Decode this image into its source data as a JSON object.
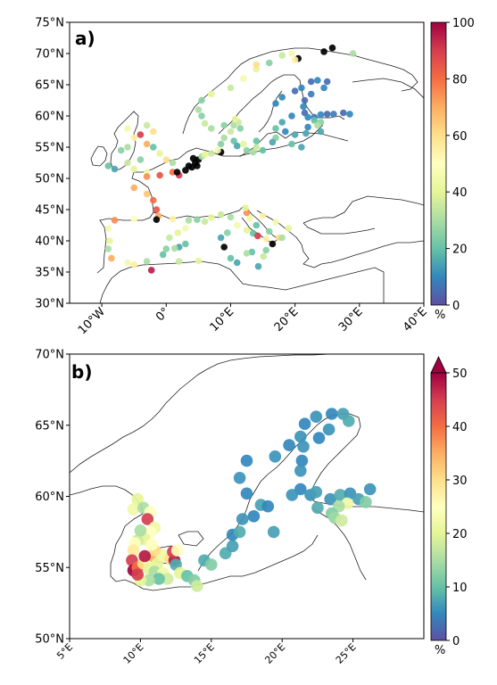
{
  "chart_data": [
    {
      "type": "scatter",
      "panel_label": "a)",
      "title": "",
      "xlabel": "",
      "ylabel": "",
      "xlim": [
        -15,
        40
      ],
      "ylim": [
        30,
        75
      ],
      "x_ticks": [
        "10°W",
        "0°",
        "10°E",
        "20°E",
        "30°E",
        "40°E"
      ],
      "x_tick_values": [
        -10,
        0,
        10,
        20,
        30,
        40
      ],
      "y_ticks": [
        "30°N",
        "35°N",
        "40°N",
        "45°N",
        "50°N",
        "55°N",
        "60°N",
        "65°N",
        "70°N",
        "75°N"
      ],
      "y_tick_values": [
        30,
        35,
        40,
        45,
        50,
        55,
        60,
        65,
        70,
        75
      ],
      "colorbar": {
        "min": 0,
        "max": 100,
        "ticks": [
          "0",
          "20",
          "40",
          "60",
          "80",
          "100"
        ],
        "tick_values": [
          0,
          20,
          40,
          60,
          80,
          100
        ],
        "unit": "%",
        "colormap": "Spectral_r",
        "extend_max": false
      },
      "missing_color": "#000000",
      "points": [
        [
          -9,
          52,
          20
        ],
        [
          -8,
          51.5,
          15
        ],
        [
          -6,
          52.5,
          35
        ],
        [
          -5,
          51.5,
          40
        ],
        [
          -4,
          53,
          25
        ],
        [
          -3,
          51,
          45
        ],
        [
          -6,
          55,
          30
        ],
        [
          -5,
          56.5,
          55
        ],
        [
          -6,
          58,
          45
        ],
        [
          -3,
          58.5,
          35
        ],
        [
          -2,
          57.5,
          60
        ],
        [
          -4,
          57,
          90
        ],
        [
          -3,
          55.5,
          70
        ],
        [
          -1,
          54,
          40
        ],
        [
          0,
          53,
          60
        ],
        [
          1,
          52.5,
          30
        ],
        [
          -2,
          55,
          20
        ],
        [
          -7,
          54.5,
          25
        ],
        [
          -3,
          50.3,
          75
        ],
        [
          -1,
          50.5,
          85
        ],
        [
          1,
          51,
          80
        ],
        [
          2,
          50.5,
          90
        ],
        [
          -5,
          48.5,
          70
        ],
        [
          -3,
          47.5,
          65
        ],
        [
          -2,
          46.5,
          80
        ],
        [
          -1.5,
          45,
          85
        ],
        [
          -1.2,
          44,
          70
        ],
        [
          -1.5,
          43.4,
          -1
        ],
        [
          1,
          43.5,
          55
        ],
        [
          -5,
          43.5,
          50
        ],
        [
          -8,
          43.3,
          75
        ],
        [
          -9,
          42,
          45
        ],
        [
          -8.8,
          40,
          40
        ],
        [
          -9,
          38.7,
          30
        ],
        [
          -8.5,
          37.2,
          70
        ],
        [
          -6,
          36.5,
          45
        ],
        [
          -5,
          36.2,
          55
        ],
        [
          -3,
          36.7,
          30
        ],
        [
          -0.5,
          37.8,
          20
        ],
        [
          0,
          38.7,
          25
        ],
        [
          0.5,
          40.5,
          35
        ],
        [
          1.8,
          41.3,
          40
        ],
        [
          3,
          42,
          45
        ],
        [
          3.5,
          43.3,
          30
        ],
        [
          4.8,
          43.4,
          25
        ],
        [
          6,
          43.1,
          35
        ],
        [
          7,
          43.7,
          40
        ],
        [
          8.5,
          44.2,
          35
        ],
        [
          10,
          43.8,
          30
        ],
        [
          11,
          42.5,
          45
        ],
        [
          12.5,
          41.7,
          40
        ],
        [
          13.5,
          41.2,
          20
        ],
        [
          14.2,
          40.8,
          90
        ],
        [
          15.5,
          40.3,
          55
        ],
        [
          16.5,
          39.5,
          -1
        ],
        [
          17.5,
          40.5,
          60
        ],
        [
          18,
          40.5,
          30
        ],
        [
          16,
          41.5,
          25
        ],
        [
          14,
          42.5,
          20
        ],
        [
          13,
          43.6,
          45
        ],
        [
          12.5,
          44.5,
          75
        ],
        [
          12.3,
          45.3,
          40
        ],
        [
          15,
          44,
          55
        ],
        [
          17,
          43,
          45
        ],
        [
          19,
          42,
          40
        ],
        [
          9,
          39,
          -1
        ],
        [
          8.5,
          40.5,
          15
        ],
        [
          9.5,
          41.3,
          25
        ],
        [
          3,
          39.5,
          20
        ],
        [
          2,
          39,
          15
        ],
        [
          1.3,
          38.8,
          30
        ],
        [
          -2.3,
          35.3,
          95
        ],
        [
          2,
          36.7,
          35
        ],
        [
          5,
          36.8,
          40
        ],
        [
          10,
          37.2,
          20
        ],
        [
          11,
          36.5,
          15
        ],
        [
          15.1,
          37.5,
          35
        ],
        [
          13.3,
          38.2,
          20
        ],
        [
          12.5,
          38,
          30
        ],
        [
          14.3,
          35.9,
          15
        ],
        [
          15.5,
          38.5,
          25
        ],
        [
          3,
          51.3,
          -1
        ],
        [
          4,
          51.8,
          -1
        ],
        [
          4.5,
          52.5,
          -1
        ],
        [
          5,
          53,
          -1
        ],
        [
          4.8,
          52,
          -1
        ],
        [
          4.2,
          53.2,
          -1
        ],
        [
          3.5,
          52,
          -1
        ],
        [
          8.5,
          54.2,
          -1
        ],
        [
          1.7,
          51,
          -1
        ],
        [
          5.5,
          53.5,
          30
        ],
        [
          6,
          53.8,
          40
        ],
        [
          7,
          54,
          35
        ],
        [
          8,
          54.5,
          45
        ],
        [
          8.5,
          55.5,
          25
        ],
        [
          9,
          56.5,
          30
        ],
        [
          10,
          57.5,
          35
        ],
        [
          10.5,
          56,
          20
        ],
        [
          11,
          55.2,
          15
        ],
        [
          12,
          55.5,
          40
        ],
        [
          12.5,
          54.5,
          25
        ],
        [
          13.5,
          54.2,
          30
        ],
        [
          14,
          55,
          35
        ],
        [
          15,
          54.5,
          20
        ],
        [
          10.5,
          58.5,
          30
        ],
        [
          11.5,
          58,
          25
        ],
        [
          11.2,
          59,
          35
        ],
        [
          10.7,
          59.5,
          40
        ],
        [
          9,
          58.5,
          25
        ],
        [
          7,
          58,
          30
        ],
        [
          6,
          58.8,
          35
        ],
        [
          5.5,
          60,
          25
        ],
        [
          5,
          61,
          30
        ],
        [
          5.5,
          62.5,
          25
        ],
        [
          7,
          63.5,
          40
        ],
        [
          10,
          64.5,
          35
        ],
        [
          12,
          66,
          45
        ],
        [
          14,
          67.5,
          40
        ],
        [
          16,
          68.5,
          25
        ],
        [
          18,
          69.7,
          35
        ],
        [
          19.5,
          70,
          45
        ],
        [
          20.5,
          69.2,
          -1
        ],
        [
          24.5,
          70.3,
          -1
        ],
        [
          25.8,
          70.9,
          -1
        ],
        [
          29,
          70,
          30
        ],
        [
          20,
          69,
          55
        ],
        [
          14,
          68.2,
          60
        ],
        [
          18,
          59,
          15
        ],
        [
          17,
          58,
          20
        ],
        [
          18.5,
          57.5,
          10
        ],
        [
          17,
          56.5,
          25
        ],
        [
          16.5,
          55.8,
          15
        ],
        [
          14,
          56,
          20
        ],
        [
          21,
          55,
          15
        ],
        [
          19.5,
          55.5,
          20
        ],
        [
          20,
          57,
          15
        ],
        [
          17,
          62,
          10
        ],
        [
          18,
          63,
          10
        ],
        [
          20,
          64,
          5
        ],
        [
          21,
          64.5,
          10
        ],
        [
          22.5,
          65.5,
          5
        ],
        [
          23.5,
          65.7,
          10
        ],
        [
          25,
          65.5,
          5
        ],
        [
          24.5,
          64.5,
          10
        ],
        [
          22.5,
          63.5,
          8
        ],
        [
          21.5,
          62.5,
          5
        ],
        [
          21.3,
          61.5,
          10
        ],
        [
          21.5,
          60.5,
          5
        ],
        [
          22,
          59.8,
          10
        ],
        [
          23,
          59.8,
          8
        ],
        [
          24,
          60.2,
          10
        ],
        [
          25,
          60.3,
          5
        ],
        [
          26,
          60.3,
          8
        ],
        [
          27.5,
          60.5,
          5
        ],
        [
          28.5,
          60.3,
          10
        ],
        [
          23,
          59.3,
          20
        ],
        [
          24,
          59,
          25
        ],
        [
          23.5,
          58.5,
          30
        ],
        [
          22,
          58.2,
          10
        ],
        [
          21.7,
          57.2,
          15
        ],
        [
          24,
          57.5,
          15
        ],
        [
          19.5,
          60,
          10
        ]
      ]
    },
    {
      "type": "scatter",
      "panel_label": "b)",
      "title": "",
      "xlabel": "",
      "ylabel": "",
      "xlim": [
        5,
        30
      ],
      "ylim": [
        50,
        70
      ],
      "x_ticks": [
        "5°E",
        "10°E",
        "15°E",
        "20°E",
        "25°E"
      ],
      "x_tick_values": [
        5,
        10,
        15,
        20,
        25
      ],
      "y_ticks": [
        "50°N",
        "55°N",
        "60°N",
        "65°N",
        "70°N"
      ],
      "y_tick_values": [
        50,
        55,
        60,
        65,
        70
      ],
      "colorbar": {
        "min": 0,
        "max": 50,
        "ticks": [
          "0",
          "10",
          "20",
          "30",
          "40",
          "50"
        ],
        "tick_values": [
          0,
          10,
          20,
          30,
          40,
          50
        ],
        "unit": "%",
        "colormap": "Spectral_r",
        "extend_max": true
      },
      "points": [
        [
          9.8,
          59.8,
          20
        ],
        [
          9.5,
          59.1,
          22
        ],
        [
          10.2,
          59.2,
          15
        ],
        [
          10.7,
          58.9,
          25
        ],
        [
          10.5,
          58.4,
          45
        ],
        [
          11,
          57.8,
          22
        ],
        [
          10.7,
          57.5,
          25
        ],
        [
          10.3,
          57,
          20
        ],
        [
          9.8,
          56.9,
          18
        ],
        [
          10,
          57.6,
          15
        ],
        [
          9.6,
          56.7,
          25
        ],
        [
          9.5,
          56.2,
          28
        ],
        [
          9.4,
          55.5,
          45
        ],
        [
          9.5,
          54.8,
          50
        ],
        [
          9.8,
          55,
          40
        ],
        [
          10.2,
          55.3,
          30
        ],
        [
          10.6,
          55.5,
          25
        ],
        [
          10.9,
          55.8,
          35
        ],
        [
          11.2,
          55.3,
          20
        ],
        [
          11.5,
          55.9,
          22
        ],
        [
          11,
          56.2,
          30
        ],
        [
          10.8,
          56.6,
          25
        ],
        [
          10.3,
          55.8,
          48
        ],
        [
          10.6,
          54.9,
          20
        ],
        [
          11,
          54.7,
          15
        ],
        [
          11.6,
          54.6,
          22
        ],
        [
          12.1,
          55.6,
          30
        ],
        [
          12.4,
          55.5,
          48
        ],
        [
          12.3,
          56.1,
          45
        ],
        [
          12.6,
          56.2,
          25
        ],
        [
          12.5,
          55.2,
          8
        ],
        [
          11.9,
          54.2,
          18
        ],
        [
          11.3,
          54.2,
          10
        ],
        [
          10.6,
          54.1,
          15
        ],
        [
          10,
          54.1,
          20
        ],
        [
          9.8,
          54.5,
          45
        ],
        [
          12.8,
          54.6,
          20
        ],
        [
          13.3,
          54.4,
          10
        ],
        [
          13.8,
          54.1,
          12
        ],
        [
          14,
          53.7,
          18
        ],
        [
          14.5,
          55.5,
          8
        ],
        [
          15,
          55.2,
          12
        ],
        [
          16,
          56,
          8
        ],
        [
          16.5,
          56.5,
          7
        ],
        [
          16.5,
          57.3,
          5
        ],
        [
          17,
          57.5,
          8
        ],
        [
          17.2,
          58.4,
          6
        ],
        [
          18,
          58.6,
          5
        ],
        [
          18.5,
          59.4,
          7
        ],
        [
          17.5,
          60.2,
          5
        ],
        [
          17,
          61.3,
          6
        ],
        [
          17.5,
          62.5,
          5
        ],
        [
          19.5,
          62.8,
          6
        ],
        [
          20.5,
          63.6,
          5
        ],
        [
          21.3,
          64.2,
          6
        ],
        [
          21.6,
          65.1,
          5
        ],
        [
          22.4,
          65.6,
          6
        ],
        [
          23.5,
          65.8,
          5
        ],
        [
          24.3,
          65.8,
          7
        ],
        [
          24.7,
          65.3,
          8
        ],
        [
          23.3,
          64.7,
          6
        ],
        [
          22.6,
          64.1,
          5
        ],
        [
          21.5,
          63.5,
          6
        ],
        [
          21.4,
          62.5,
          5
        ],
        [
          21.3,
          61.8,
          6
        ],
        [
          21.3,
          60.5,
          5
        ],
        [
          22,
          60.1,
          6
        ],
        [
          22.4,
          60.3,
          7
        ],
        [
          23.4,
          59.8,
          6
        ],
        [
          24.1,
          60.1,
          8
        ],
        [
          24.8,
          60.2,
          6
        ],
        [
          25.4,
          59.8,
          7
        ],
        [
          26.2,
          60.5,
          6
        ],
        [
          25.9,
          59.6,
          12
        ],
        [
          24.6,
          59.5,
          22
        ],
        [
          24,
          59.3,
          15
        ],
        [
          23.5,
          58.8,
          12
        ],
        [
          23.7,
          58.5,
          14
        ],
        [
          24.2,
          58.3,
          18
        ],
        [
          22.5,
          59.2,
          8
        ],
        [
          19,
          59.3,
          5
        ],
        [
          20.7,
          60.1,
          6
        ],
        [
          19.4,
          57.5,
          7
        ]
      ]
    }
  ]
}
